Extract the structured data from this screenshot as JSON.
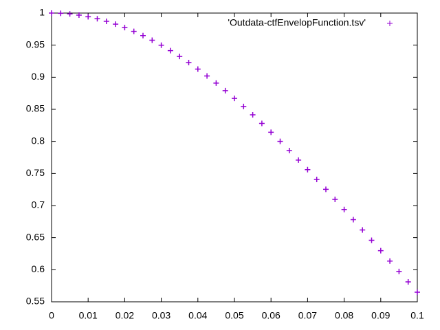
{
  "chart_data": {
    "type": "scatter",
    "series": [
      {
        "name": "'Outdata-ctfEnvelopFunction.tsv'",
        "color": "#9400d3",
        "x": [
          0,
          0.0025,
          0.005,
          0.0075,
          0.01,
          0.0125,
          0.015,
          0.0175,
          0.02,
          0.0225,
          0.025,
          0.0275,
          0.03,
          0.0325,
          0.035,
          0.0375,
          0.04,
          0.0425,
          0.045,
          0.0475,
          0.05,
          0.0525,
          0.055,
          0.0575,
          0.06,
          0.0625,
          0.065,
          0.0675,
          0.07,
          0.0725,
          0.075,
          0.0775,
          0.08,
          0.0825,
          0.085,
          0.0875,
          0.09,
          0.0925,
          0.095,
          0.0975,
          0.1
        ],
        "values": [
          1,
          0.9996,
          0.9986,
          0.9968,
          0.9943,
          0.9911,
          0.9872,
          0.9827,
          0.9774,
          0.9715,
          0.9649,
          0.9577,
          0.9499,
          0.9415,
          0.9324,
          0.9228,
          0.9127,
          0.902,
          0.8908,
          0.8791,
          0.867,
          0.8544,
          0.8414,
          0.828,
          0.8142,
          0.8001,
          0.7857,
          0.7709,
          0.756,
          0.7407,
          0.7253,
          0.7097,
          0.6939,
          0.678,
          0.662,
          0.6459,
          0.6297,
          0.6135,
          0.5973,
          0.5811,
          0.565
        ]
      }
    ],
    "xlim": [
      0,
      0.1
    ],
    "xticks": [
      0,
      0.01,
      0.02,
      0.03,
      0.04,
      0.05,
      0.06,
      0.07,
      0.08,
      0.09,
      0.1
    ],
    "ylim": [
      0.55,
      1
    ],
    "yticks": [
      0.55,
      0.6,
      0.65,
      0.7,
      0.75,
      0.8,
      0.85,
      0.9,
      0.95,
      1
    ],
    "grid": false,
    "legend": "top-right"
  }
}
